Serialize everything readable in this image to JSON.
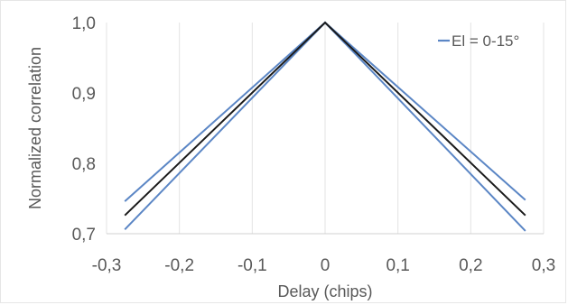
{
  "chart_data": {
    "type": "line",
    "xlabel": "Delay (chips)",
    "ylabel": "Normalized correlation",
    "xlim": [
      -0.3,
      0.3
    ],
    "ylim": [
      0.7,
      1.0
    ],
    "x_ticks": [
      "-0,3",
      "-0,2",
      "-0,1",
      "0",
      "0,1",
      "0,2",
      "0,3"
    ],
    "y_ticks": [
      "0,7",
      "0,8",
      "0,9",
      "1,0"
    ],
    "grid": "vertical",
    "legend_position": "top-right",
    "series": [
      {
        "name": "El = 0-15°",
        "color": "#5b86c5",
        "band": "upper",
        "x": [
          -0.275,
          0,
          0.275
        ],
        "y": [
          0.746,
          1.0,
          0.748
        ]
      },
      {
        "color": "#5b86c5",
        "band": "lower",
        "x": [
          -0.275,
          0,
          0.275
        ],
        "y": [
          0.706,
          1.0,
          0.704
        ]
      },
      {
        "color": "#1a1a1a",
        "band": "mean",
        "x": [
          -0.275,
          0,
          0.275
        ],
        "y": [
          0.726,
          1.0,
          0.726
        ]
      }
    ]
  }
}
